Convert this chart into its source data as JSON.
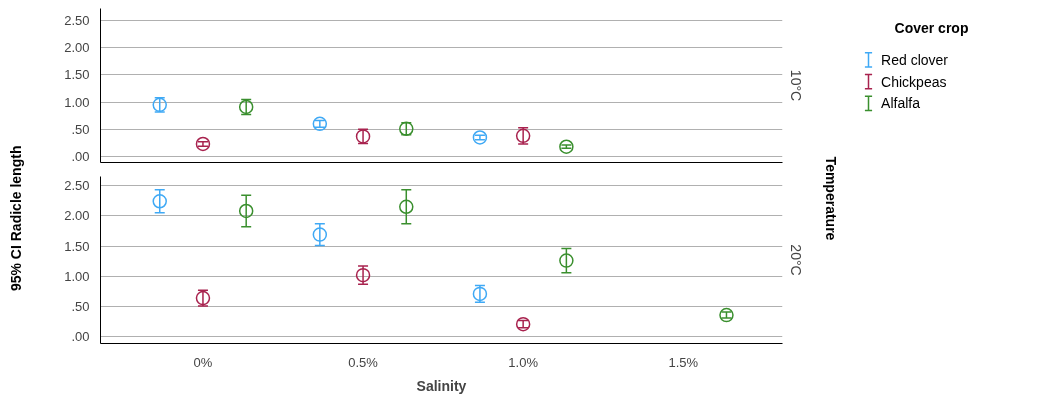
{
  "chart_data": [
    {
      "type": "scatter",
      "subtitle": "10°C",
      "ylabel": "95% CI Radicle length",
      "y2label": "Temperature",
      "legend_title": "Cover crop",
      "legend": "right",
      "grid": "y",
      "marker": "circle",
      "tick_labels": "y",
      "categories": [
        null,
        null,
        null,
        null
      ],
      "ylim": [
        -0.11,
        2.72
      ],
      "yticks": [
        {
          "value": 0,
          "label": ".00"
        },
        {
          "value": 0.5,
          "label": ".50"
        },
        {
          "value": 1,
          "label": "1.00"
        },
        {
          "value": 1.5,
          "label": "1.50"
        },
        {
          "value": 2,
          "label": "2.00"
        },
        {
          "value": 2.5,
          "label": "2.50"
        }
      ],
      "series": [
        {
          "name": "Red clover",
          "color": "#3fa9f5",
          "values": [
            0.95,
            0.6,
            0.35,
            null
          ],
          "errors": [
            0.13,
            0.06,
            0.04,
            null
          ]
        },
        {
          "name": "Chickpeas",
          "color": "#a8224e",
          "values": [
            0.23,
            0.37,
            0.38,
            null
          ],
          "errors": [
            0.04,
            0.13,
            0.15,
            null
          ]
        },
        {
          "name": "Alfalfa",
          "color": "#3a8f2e",
          "values": [
            0.91,
            0.51,
            0.18,
            null
          ],
          "errors": [
            0.14,
            0.11,
            0.03,
            null
          ]
        }
      ]
    },
    {
      "type": "scatter",
      "subtitle": "20°C",
      "xlabel": "Salinity",
      "grid": "y",
      "marker": "circle",
      "categories": [
        "0%",
        "0.5%",
        "1.0%",
        "1.5%"
      ],
      "ylim": [
        -0.11,
        2.65
      ],
      "yticks": [
        {
          "value": 0,
          "label": ".00"
        },
        {
          "value": 0.5,
          "label": ".50"
        },
        {
          "value": 1,
          "label": "1.00"
        },
        {
          "value": 1.5,
          "label": "1.50"
        },
        {
          "value": 2,
          "label": "2.00"
        },
        {
          "value": 2.5,
          "label": "2.50"
        }
      ],
      "series": [
        {
          "color": "#3fa9f5",
          "values": [
            2.24,
            1.69,
            0.71,
            null
          ],
          "errors": [
            0.19,
            0.18,
            0.14,
            null
          ]
        },
        {
          "color": "#a8224e",
          "values": [
            0.64,
            1.02,
            0.21,
            null
          ],
          "errors": [
            0.13,
            0.15,
            0.06,
            null
          ]
        },
        {
          "color": "#3a8f2e",
          "values": [
            2.08,
            2.15,
            1.26,
            0.36
          ],
          "errors": [
            0.26,
            0.28,
            0.2,
            0.05
          ]
        }
      ]
    }
  ]
}
